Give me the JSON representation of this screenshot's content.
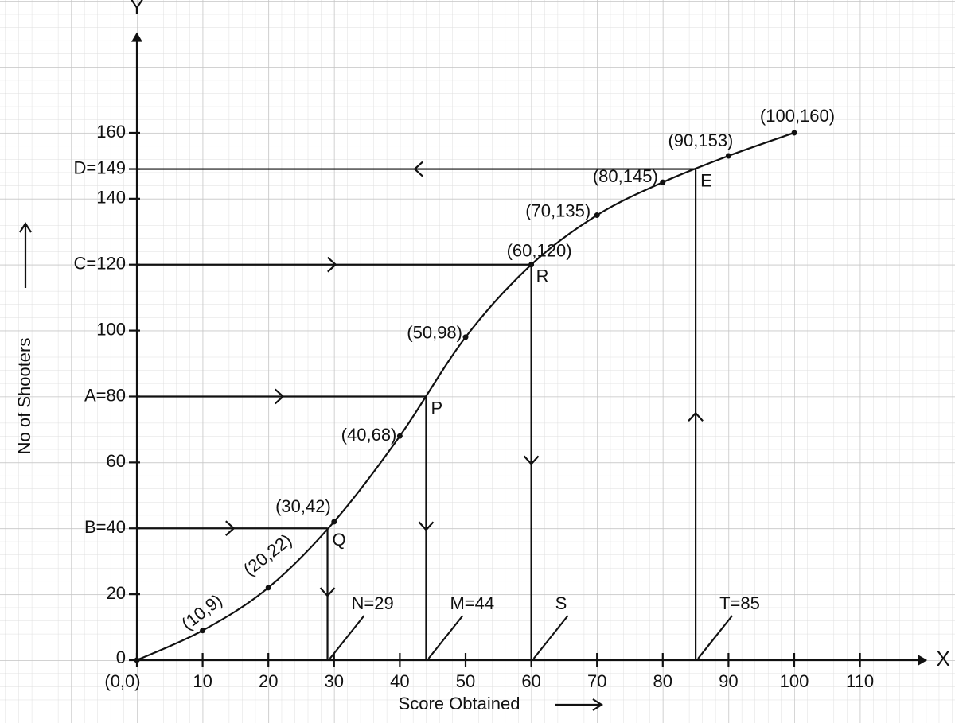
{
  "chart_data": {
    "type": "line",
    "x_label": "Score Obtained",
    "y_label": "No of Shooters",
    "x_axis_name": "X",
    "y_axis_name": "Y",
    "grid": true,
    "color": "#111111",
    "xlim": [
      0,
      120
    ],
    "ylim": [
      0,
      190
    ],
    "xticks": [
      {
        "value": 0,
        "label": "(0,0)"
      },
      10,
      20,
      30,
      40,
      50,
      60,
      70,
      80,
      90,
      100,
      110
    ],
    "yticks": [
      0,
      20,
      {
        "value": 40,
        "label": "B=40"
      },
      60,
      {
        "value": 80,
        "label": "A=80"
      },
      100,
      {
        "value": 120,
        "label": "C=120"
      },
      140,
      {
        "value": 149,
        "label": "D=149"
      },
      160
    ],
    "x": [
      0,
      10,
      20,
      30,
      40,
      50,
      60,
      70,
      80,
      90,
      100
    ],
    "values": [
      0,
      9,
      22,
      42,
      68,
      98,
      120,
      135,
      145,
      153,
      160
    ],
    "value_labels": [
      null,
      "(10,9)",
      "(20,22)",
      "(30,42)",
      "(40,68)",
      "(50,98)",
      "(60,120)",
      "(70,135)",
      "(80,145)",
      "(90,153)",
      "(100,160)"
    ],
    "guides": [
      {
        "name": "Q",
        "x": 29,
        "y": 40,
        "x_label": "N=29",
        "flow": "y-to-x"
      },
      {
        "name": "P",
        "x": 44,
        "y": 80,
        "x_label": "M=44",
        "flow": "y-to-x"
      },
      {
        "name": "R",
        "x": 60,
        "y": 120,
        "x_label": "S",
        "flow": "y-to-x"
      },
      {
        "name": "E",
        "x": 85,
        "y": 149,
        "x_label": "T=85",
        "flow": "x-to-y"
      }
    ]
  }
}
